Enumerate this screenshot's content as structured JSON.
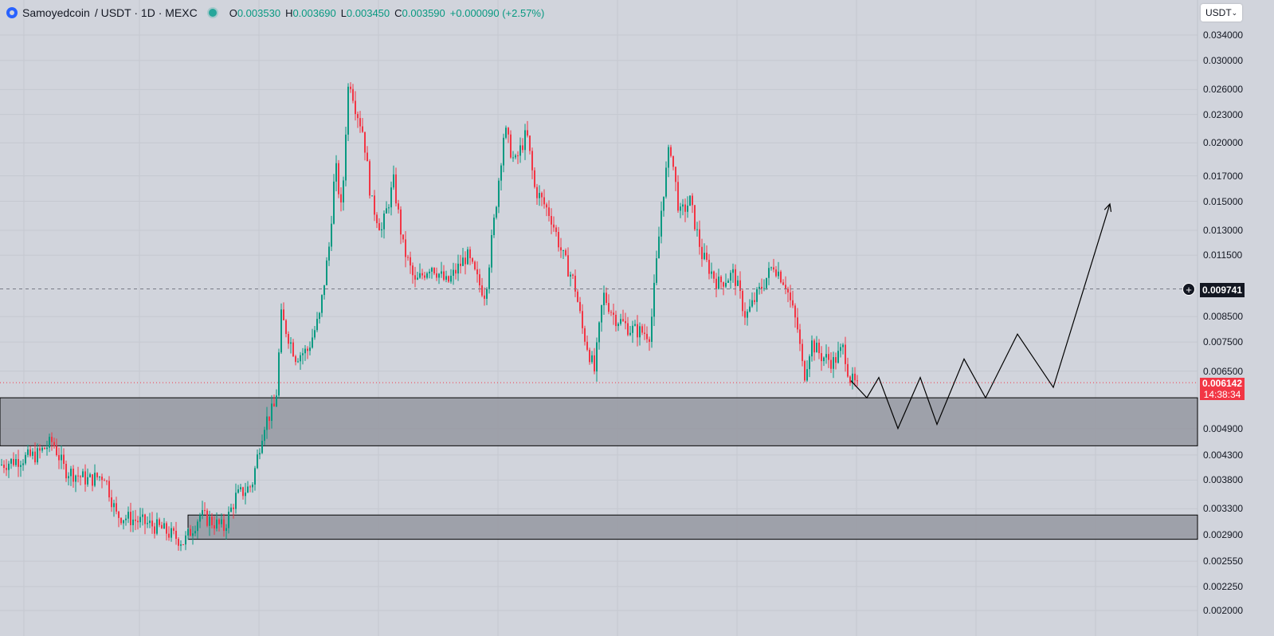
{
  "header": {
    "symbol": "Samoyedcoin",
    "pair": "/ USDT · 1D · MEXC",
    "open_label": "O",
    "open": "0.003530",
    "high_label": "H",
    "high": "0.003690",
    "low_label": "L",
    "low": "0.003450",
    "close_label": "C",
    "close": "0.003590",
    "change": "+0.000090 (+2.57%)"
  },
  "currency_select": {
    "value": "USDT"
  },
  "price_tags": {
    "crosshair_price": "0.009741",
    "last_price": "0.006142",
    "countdown": "14:38:34"
  },
  "colors": {
    "background": "#d1d4dc",
    "up": "#089981",
    "down": "#f23645",
    "zone_fill": "#9598a1",
    "line": "#131722"
  },
  "chart_data": {
    "type": "candlestick",
    "symbol": "Samoyedcoin / USDT",
    "timeframe": "1D",
    "exchange": "MEXC",
    "y_scale": "log",
    "ylim": [
      0.0018,
      0.036
    ],
    "y_ticks": [
      "0.034000",
      "0.030000",
      "0.026000",
      "0.023000",
      "0.020000",
      "0.017000",
      "0.015000",
      "0.013000",
      "0.011500",
      "0.008500",
      "0.007500",
      "0.006500",
      "0.004900",
      "0.004300",
      "0.003800",
      "0.003300",
      "0.002900",
      "0.002550",
      "0.002250",
      "0.002000"
    ],
    "last_ohlc": {
      "open": 0.00353,
      "high": 0.00369,
      "low": 0.00345,
      "close": 0.00359
    },
    "last_price": 0.006142,
    "crosshair_price": 0.009741,
    "grid": true,
    "anchors": [
      [
        0,
        0.0041
      ],
      [
        20,
        0.0042
      ],
      [
        45,
        0.0043
      ],
      [
        65,
        0.0046
      ],
      [
        80,
        0.004
      ],
      [
        110,
        0.0038
      ],
      [
        130,
        0.0039
      ],
      [
        145,
        0.0032
      ],
      [
        175,
        0.0031
      ],
      [
        200,
        0.003
      ],
      [
        230,
        0.0028
      ],
      [
        250,
        0.0032
      ],
      [
        280,
        0.003
      ],
      [
        295,
        0.0035
      ],
      [
        315,
        0.0037
      ],
      [
        330,
        0.005
      ],
      [
        345,
        0.0055
      ],
      [
        352,
        0.0085
      ],
      [
        370,
        0.007
      ],
      [
        385,
        0.0072
      ],
      [
        400,
        0.0085
      ],
      [
        412,
        0.012
      ],
      [
        420,
        0.018
      ],
      [
        428,
        0.014
      ],
      [
        432,
        0.02
      ],
      [
        437,
        0.028
      ],
      [
        445,
        0.024
      ],
      [
        455,
        0.021
      ],
      [
        465,
        0.015
      ],
      [
        478,
        0.013
      ],
      [
        493,
        0.0165
      ],
      [
        505,
        0.012
      ],
      [
        520,
        0.01
      ],
      [
        540,
        0.011
      ],
      [
        560,
        0.01
      ],
      [
        585,
        0.0115
      ],
      [
        600,
        0.01
      ],
      [
        608,
        0.0095
      ],
      [
        620,
        0.014
      ],
      [
        632,
        0.0215
      ],
      [
        645,
        0.018
      ],
      [
        660,
        0.021
      ],
      [
        670,
        0.016
      ],
      [
        690,
        0.014
      ],
      [
        705,
        0.0115
      ],
      [
        720,
        0.01
      ],
      [
        730,
        0.008
      ],
      [
        745,
        0.0065
      ],
      [
        756,
        0.0095
      ],
      [
        770,
        0.0085
      ],
      [
        790,
        0.008
      ],
      [
        815,
        0.0078
      ],
      [
        830,
        0.015
      ],
      [
        840,
        0.02
      ],
      [
        852,
        0.014
      ],
      [
        865,
        0.015
      ],
      [
        880,
        0.0115
      ],
      [
        900,
        0.01
      ],
      [
        920,
        0.0105
      ],
      [
        935,
        0.0085
      ],
      [
        950,
        0.0095
      ],
      [
        970,
        0.011
      ],
      [
        985,
        0.01
      ],
      [
        1000,
        0.008
      ],
      [
        1008,
        0.0063
      ],
      [
        1017,
        0.0075
      ],
      [
        1030,
        0.007
      ],
      [
        1045,
        0.0068
      ],
      [
        1058,
        0.0073
      ],
      [
        1065,
        0.0063
      ],
      [
        1075,
        0.006
      ]
    ],
    "zones": [
      {
        "start_x": 0,
        "top": 0.0057,
        "bottom": 0.0045
      },
      {
        "start_x": 236,
        "top": 0.0032,
        "bottom": 0.00284
      }
    ],
    "projection": [
      [
        1068,
        0.0062
      ],
      [
        1088,
        0.0057
      ],
      [
        1103,
        0.0063
      ],
      [
        1127,
        0.0049
      ],
      [
        1155,
        0.0063
      ],
      [
        1176,
        0.005
      ],
      [
        1210,
        0.0069
      ],
      [
        1237,
        0.0057
      ],
      [
        1277,
        0.0078
      ],
      [
        1322,
        0.006
      ],
      [
        1393,
        0.0148
      ]
    ]
  }
}
